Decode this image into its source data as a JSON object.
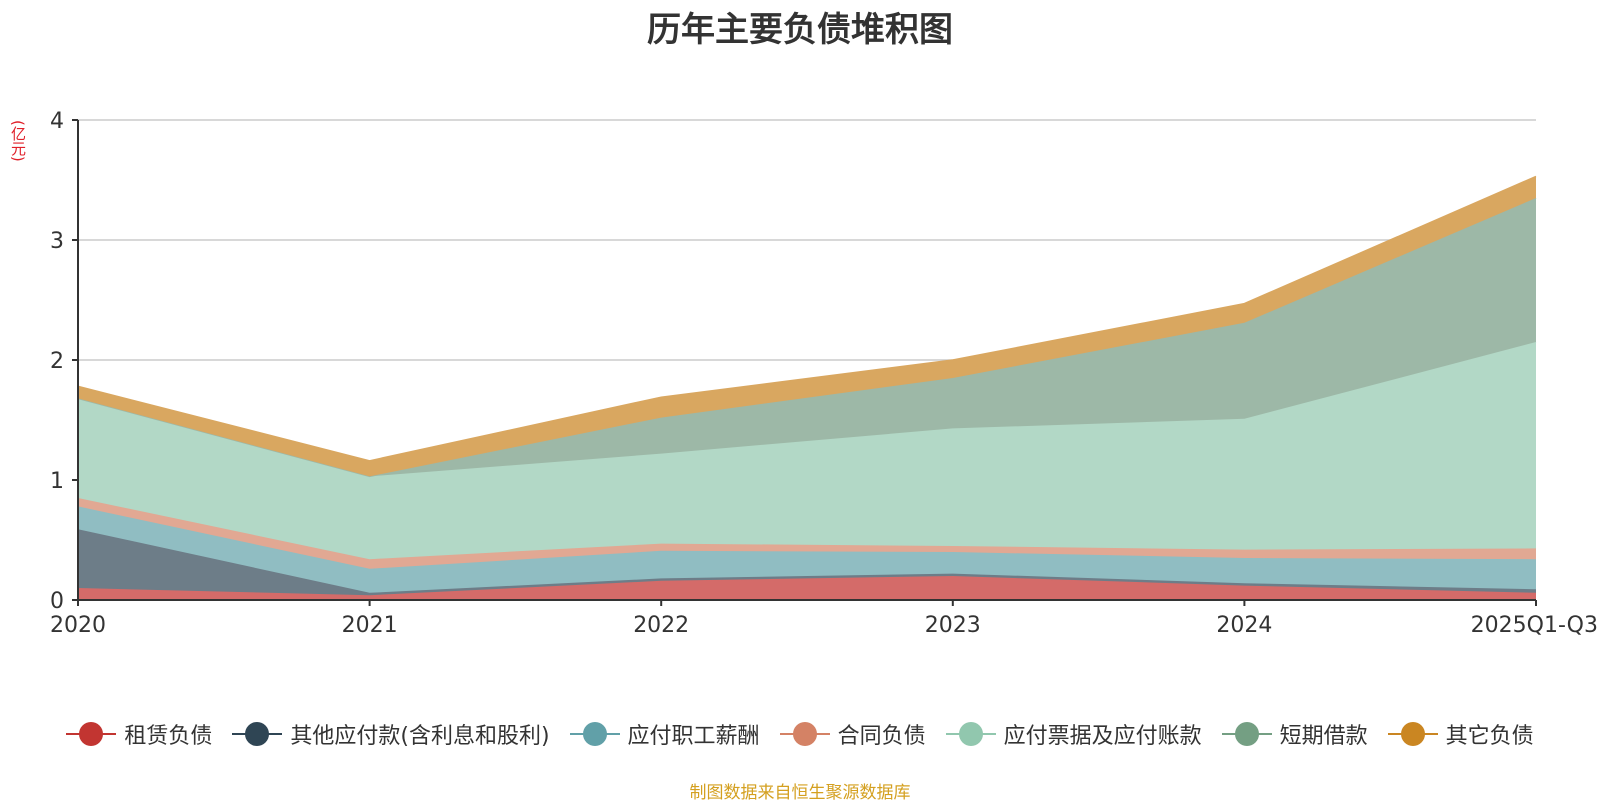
{
  "title": "历年主要负债堆积图",
  "unit_label": "(亿元)",
  "source": "制图数据来自恒生聚源数据库",
  "chart_data": {
    "type": "area",
    "stacked": true,
    "categories": [
      "2020",
      "2021",
      "2022",
      "2023",
      "2024",
      "2025Q1-Q3"
    ],
    "ylim": [
      0,
      4
    ],
    "yticks": [
      0,
      1,
      2,
      3,
      4
    ],
    "grid": true,
    "legend_position": "bottom",
    "series": [
      {
        "name": "租赁负债",
        "color": "#c23531",
        "area_color": "#d46b69",
        "values": [
          0.1,
          0.04,
          0.16,
          0.2,
          0.12,
          0.06
        ]
      },
      {
        "name": "其他应付款(含利息和股利)",
        "color": "#2f4554",
        "area_color": "#6d7d88",
        "values": [
          0.49,
          0.02,
          0.02,
          0.02,
          0.02,
          0.03
        ]
      },
      {
        "name": "应付职工薪酬",
        "color": "#61a0a8",
        "area_color": "#90bdc2",
        "values": [
          0.19,
          0.2,
          0.23,
          0.18,
          0.21,
          0.25
        ]
      },
      {
        "name": "合同负债",
        "color": "#d48265",
        "area_color": "#e1a893",
        "values": [
          0.07,
          0.08,
          0.06,
          0.05,
          0.07,
          0.09
        ]
      },
      {
        "name": "应付票据及应付账款",
        "color": "#91c7ae",
        "area_color": "#b2d8c6",
        "values": [
          0.83,
          0.69,
          0.75,
          0.98,
          1.09,
          1.72
        ]
      },
      {
        "name": "短期借款",
        "color": "#749f83",
        "area_color": "#9db8a7",
        "values": [
          0.0,
          0.0,
          0.3,
          0.42,
          0.8,
          1.2
        ]
      },
      {
        "name": "其它负债",
        "color": "#ca8622",
        "area_color": "#d9a760",
        "values": [
          0.1,
          0.13,
          0.17,
          0.15,
          0.16,
          0.18
        ]
      }
    ]
  }
}
